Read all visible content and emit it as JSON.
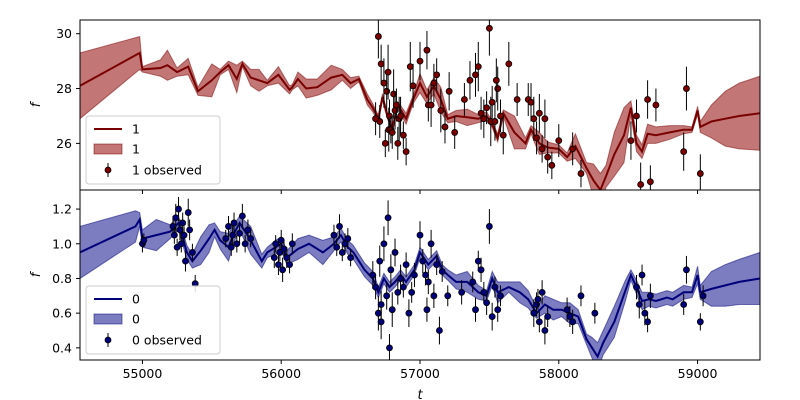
{
  "chart_data": [
    {
      "type": "line",
      "panel": "top",
      "xlabel": "",
      "ylabel": "f",
      "xlim": [
        54550,
        59450
      ],
      "ylim": [
        24.3,
        30.5
      ],
      "yticks": [
        26,
        28,
        30
      ],
      "color": "#7a0000",
      "band_color": "#b35454",
      "legend": {
        "line_label": "1",
        "band_label": "1",
        "points_label": "1 observed",
        "placement": "lower left"
      },
      "model": {
        "x": [
          54550,
          54980,
          55000,
          55130,
          55180,
          55250,
          55330,
          55400,
          55500,
          55560,
          55620,
          55680,
          55720,
          55780,
          55840,
          55900,
          55980,
          56060,
          56080,
          56120,
          56180,
          56260,
          56360,
          56440,
          56500,
          56560,
          56620,
          56660,
          56700,
          56730,
          56760,
          56800,
          56840,
          56900,
          56950,
          57000,
          57050,
          57100,
          57150,
          57200,
          57260,
          57340,
          57420,
          57480,
          57520,
          57560,
          57600,
          57680,
          57760,
          57800,
          57860,
          57920,
          58000,
          58060,
          58120,
          58200,
          58250,
          58300,
          58340,
          58400,
          58470,
          58520,
          58560,
          58600,
          58640,
          58700,
          58800,
          58900,
          58960,
          59000,
          59020,
          59100,
          59200,
          59300,
          59450
        ],
        "y": [
          28.1,
          29.3,
          28.7,
          28.75,
          28.85,
          28.6,
          28.8,
          27.9,
          28.3,
          28.6,
          28.85,
          28.35,
          28.9,
          28.4,
          28.3,
          28.2,
          28.5,
          27.95,
          28.05,
          28.35,
          28.0,
          28.05,
          28.4,
          28.5,
          28.2,
          28.35,
          27.6,
          27.3,
          26.9,
          27.7,
          27.1,
          26.5,
          27.4,
          26.9,
          27.6,
          28.2,
          27.7,
          28.1,
          27.6,
          26.9,
          27.0,
          26.95,
          26.9,
          27.0,
          26.7,
          26.2,
          27.1,
          26.4,
          26.0,
          26.5,
          26.0,
          25.85,
          25.8,
          25.5,
          25.9,
          25.1,
          24.65,
          24.3,
          24.8,
          25.6,
          26.3,
          27.3,
          26.0,
          25.7,
          26.35,
          26.3,
          26.4,
          26.5,
          26.5,
          27.2,
          26.6,
          26.8,
          26.9,
          27.0,
          27.1
        ],
        "band": [
          1.2,
          0.6,
          0.1,
          0.3,
          0.55,
          0.15,
          0.3,
          0.15,
          0.6,
          0.1,
          0.15,
          0.5,
          0.1,
          0.3,
          0.4,
          0.1,
          0.3,
          0.15,
          0.1,
          0.25,
          0.35,
          0.3,
          0.45,
          0.2,
          0.2,
          0.1,
          0.2,
          0.15,
          0.12,
          0.12,
          0.12,
          0.12,
          0.12,
          0.2,
          0.15,
          0.35,
          0.25,
          0.3,
          0.45,
          0.15,
          0.2,
          0.3,
          0.15,
          0.15,
          0.12,
          0.15,
          0.12,
          0.6,
          0.2,
          0.15,
          0.4,
          0.2,
          0.15,
          0.15,
          0.45,
          0.2,
          0.6,
          0.6,
          0.4,
          0.8,
          1.0,
          0.25,
          0.3,
          0.25,
          0.35,
          0.3,
          0.25,
          0.15,
          0.1,
          0.15,
          0.2,
          0.6,
          1.0,
          1.2,
          1.35
        ]
      },
      "observed": {
        "x": [
          56710,
          56700,
          56720,
          56740,
          56750,
          56760,
          56770,
          56775,
          56780,
          56790,
          56800,
          56810,
          56820,
          56830,
          56840,
          56850,
          56860,
          56880,
          56900,
          56930,
          57050,
          57060,
          57080,
          57100,
          57120,
          57150,
          57180,
          57210,
          57320,
          57360,
          57400,
          57420,
          57440,
          57460,
          57480,
          57500,
          57510,
          57520,
          57540,
          57560,
          57580,
          57600,
          57640,
          57780,
          57800,
          57820,
          57840,
          57860,
          57880,
          57920,
          57950,
          58100,
          58160,
          58520,
          58560,
          58590,
          58640,
          58660,
          58700,
          58900,
          58920,
          59020,
          58000,
          57900,
          57700,
          57550,
          57250,
          57000,
          56950,
          56680
        ],
        "y": [
          26.8,
          29.9,
          28.9,
          28.2,
          26.0,
          27.9,
          28.6,
          26.5,
          27.0,
          26.5,
          26.4,
          27.8,
          27.2,
          27.4,
          26.0,
          26.9,
          27.0,
          26.3,
          25.7,
          28.8,
          29.4,
          27.4,
          27.4,
          28.2,
          28.5,
          27.2,
          26.6,
          27.9,
          27.6,
          28.3,
          28.5,
          28.8,
          27.1,
          26.9,
          27.3,
          30.2,
          26.8,
          27.5,
          26.8,
          28.0,
          27.0,
          26.3,
          28.9,
          27.6,
          27.5,
          26.9,
          26.2,
          27.1,
          25.8,
          25.5,
          25.2,
          25.8,
          24.9,
          26.1,
          27.0,
          24.5,
          27.6,
          24.6,
          27.4,
          25.7,
          28.0,
          24.9,
          26.1,
          26.9,
          27.6,
          28.3,
          26.4,
          29.0,
          28.1,
          26.9
        ],
        "err": [
          0.6,
          0.8,
          0.7,
          0.9,
          0.5,
          0.7,
          1.0,
          0.8,
          0.6,
          0.5,
          0.6,
          0.9,
          0.7,
          0.6,
          0.6,
          0.8,
          0.7,
          0.5,
          0.5,
          0.9,
          0.7,
          0.6,
          0.8,
          0.7,
          0.6,
          0.8,
          0.6,
          0.7,
          0.6,
          0.7,
          0.8,
          0.9,
          0.6,
          0.7,
          0.6,
          1.0,
          0.9,
          0.6,
          0.7,
          0.8,
          0.6,
          0.7,
          0.8,
          0.6,
          0.7,
          0.8,
          0.6,
          0.7,
          0.5,
          0.6,
          0.5,
          0.6,
          0.5,
          0.7,
          0.6,
          0.8,
          0.7,
          0.6,
          0.6,
          0.7,
          0.8,
          0.7,
          0.6,
          0.7,
          0.6,
          0.8,
          0.6,
          0.7,
          0.8,
          0.6
        ]
      }
    },
    {
      "type": "line",
      "panel": "bottom",
      "xlabel": "t",
      "ylabel": "f",
      "xlim": [
        54550,
        59450
      ],
      "ylim": [
        0.33,
        1.31
      ],
      "yticks": [
        0.4,
        0.6,
        0.8,
        1.0,
        1.2
      ],
      "xticks": [
        55000,
        56000,
        57000,
        58000,
        59000
      ],
      "color": "#00007a",
      "band_color": "#5b5bb0",
      "legend": {
        "line_label": "0",
        "band_label": "0",
        "points_label": "0 observed",
        "placement": "lower left"
      },
      "model": {
        "x": [
          54550,
          54950,
          54980,
          55000,
          55100,
          55200,
          55260,
          55320,
          55360,
          55420,
          55480,
          55520,
          55560,
          55620,
          55660,
          55700,
          55780,
          55860,
          55900,
          55960,
          56000,
          56040,
          56120,
          56200,
          56300,
          56380,
          56430,
          56480,
          56520,
          56600,
          56660,
          56700,
          56740,
          56780,
          56820,
          56860,
          56900,
          56960,
          57000,
          57060,
          57120,
          57160,
          57200,
          57260,
          57340,
          57420,
          57480,
          57520,
          57560,
          57640,
          57720,
          57780,
          57840,
          57900,
          57960,
          58020,
          58080,
          58140,
          58200,
          58240,
          58280,
          58320,
          58400,
          58480,
          58520,
          58560,
          58600,
          58650,
          58700,
          58780,
          58820,
          58900,
          58960,
          59000,
          59020,
          59100,
          59200,
          59300,
          59450
        ],
        "y": [
          0.95,
          1.1,
          1.14,
          1.03,
          1.05,
          1.07,
          1.12,
          0.95,
          0.9,
          0.96,
          1.03,
          1.08,
          1.02,
          0.98,
          1.06,
          1.12,
          1.02,
          0.9,
          0.95,
          0.98,
          1.0,
          0.92,
          0.97,
          1.0,
          0.95,
          1.0,
          1.05,
          0.98,
          0.95,
          0.85,
          0.8,
          0.72,
          0.8,
          0.75,
          0.78,
          0.82,
          0.78,
          0.85,
          0.95,
          0.88,
          0.93,
          0.85,
          0.82,
          0.78,
          0.78,
          0.72,
          0.7,
          0.8,
          0.72,
          0.75,
          0.72,
          0.68,
          0.6,
          0.65,
          0.62,
          0.62,
          0.6,
          0.58,
          0.45,
          0.4,
          0.35,
          0.43,
          0.55,
          0.73,
          0.82,
          0.75,
          0.67,
          0.68,
          0.67,
          0.69,
          0.68,
          0.72,
          0.72,
          0.82,
          0.72,
          0.74,
          0.76,
          0.78,
          0.8
        ],
        "band": [
          0.15,
          0.09,
          0.04,
          0.05,
          0.09,
          0.04,
          0.04,
          0.04,
          0.04,
          0.08,
          0.08,
          0.04,
          0.05,
          0.08,
          0.05,
          0.04,
          0.08,
          0.04,
          0.03,
          0.04,
          0.04,
          0.04,
          0.06,
          0.05,
          0.07,
          0.04,
          0.04,
          0.04,
          0.04,
          0.04,
          0.04,
          0.03,
          0.03,
          0.03,
          0.03,
          0.03,
          0.03,
          0.03,
          0.03,
          0.03,
          0.03,
          0.03,
          0.03,
          0.04,
          0.06,
          0.04,
          0.03,
          0.04,
          0.06,
          0.03,
          0.06,
          0.05,
          0.03,
          0.05,
          0.06,
          0.04,
          0.06,
          0.04,
          0.03,
          0.06,
          0.08,
          0.07,
          0.09,
          0.06,
          0.03,
          0.04,
          0.05,
          0.04,
          0.04,
          0.04,
          0.04,
          0.04,
          0.03,
          0.05,
          0.04,
          0.1,
          0.12,
          0.13,
          0.15
        ]
      },
      "observed": {
        "x": [
          55000,
          55010,
          55220,
          55230,
          55240,
          55250,
          55260,
          55270,
          55280,
          55290,
          55300,
          55310,
          55330,
          55340,
          55360,
          55380,
          55600,
          55620,
          55640,
          55650,
          55660,
          55680,
          55700,
          55720,
          55740,
          55760,
          55780,
          55950,
          55960,
          55980,
          55990,
          56000,
          56010,
          56020,
          56040,
          56060,
          56080,
          56380,
          56400,
          56420,
          56440,
          56460,
          56480,
          56500,
          56660,
          56680,
          56700,
          56710,
          56720,
          56740,
          56760,
          56770,
          56780,
          56790,
          56800,
          56820,
          56840,
          56860,
          56880,
          56900,
          56920,
          56940,
          56960,
          57000,
          57020,
          57040,
          57060,
          57080,
          57100,
          57120,
          57140,
          57160,
          57200,
          57380,
          57400,
          57420,
          57440,
          57460,
          57480,
          57500,
          57520,
          57540,
          57560,
          57580,
          57820,
          57840,
          57860,
          57880,
          57900,
          57920,
          58060,
          58080,
          58100,
          58160,
          58260,
          58560,
          58580,
          58600,
          58620,
          58640,
          58660,
          58900,
          58920,
          59020,
          59040,
          57850,
          57300,
          56720,
          57050
        ],
        "y": [
          1.0,
          1.02,
          1.1,
          1.05,
          1.15,
          0.98,
          1.2,
          1.08,
          1.0,
          1.12,
          1.05,
          0.9,
          1.18,
          1.08,
          0.95,
          0.77,
          1.03,
          1.1,
          0.98,
          1.05,
          1.12,
          1.0,
          1.06,
          1.16,
          1.0,
          1.08,
          1.03,
          0.92,
          1.0,
          0.88,
          0.95,
          1.02,
          0.85,
          0.97,
          0.92,
          0.88,
          1.0,
          1.05,
          0.98,
          1.1,
          0.95,
          1.0,
          1.03,
          0.92,
          0.82,
          0.75,
          0.6,
          0.9,
          0.55,
          1.0,
          0.7,
          1.15,
          0.4,
          0.85,
          0.62,
          0.95,
          0.72,
          0.8,
          0.75,
          0.88,
          0.6,
          0.72,
          0.82,
          1.05,
          0.9,
          0.82,
          0.78,
          1.0,
          0.7,
          0.88,
          0.5,
          0.84,
          0.7,
          0.78,
          0.62,
          0.9,
          0.85,
          0.72,
          0.66,
          1.1,
          0.58,
          0.75,
          0.62,
          0.7,
          0.6,
          0.65,
          0.55,
          0.72,
          0.5,
          0.58,
          0.62,
          0.58,
          0.55,
          0.7,
          0.6,
          0.75,
          0.65,
          0.82,
          0.6,
          0.55,
          0.7,
          0.65,
          0.85,
          0.55,
          0.7,
          0.68,
          0.72,
          0.65,
          0.62
        ],
        "err": [
          0.05,
          0.04,
          0.06,
          0.05,
          0.08,
          0.05,
          0.07,
          0.06,
          0.05,
          0.06,
          0.05,
          0.06,
          0.08,
          0.06,
          0.05,
          0.05,
          0.05,
          0.06,
          0.05,
          0.06,
          0.06,
          0.05,
          0.06,
          0.07,
          0.05,
          0.06,
          0.05,
          0.06,
          0.05,
          0.06,
          0.05,
          0.06,
          0.07,
          0.05,
          0.06,
          0.05,
          0.06,
          0.06,
          0.05,
          0.07,
          0.05,
          0.06,
          0.06,
          0.05,
          0.08,
          0.07,
          0.1,
          0.09,
          0.1,
          0.1,
          0.08,
          0.1,
          0.08,
          0.09,
          0.1,
          0.08,
          0.07,
          0.08,
          0.06,
          0.07,
          0.08,
          0.06,
          0.07,
          0.08,
          0.07,
          0.06,
          0.07,
          0.08,
          0.07,
          0.06,
          0.08,
          0.06,
          0.06,
          0.06,
          0.07,
          0.06,
          0.07,
          0.06,
          0.07,
          0.1,
          0.08,
          0.06,
          0.07,
          0.06,
          0.08,
          0.07,
          0.06,
          0.07,
          0.08,
          0.06,
          0.07,
          0.06,
          0.07,
          0.06,
          0.06,
          0.07,
          0.08,
          0.06,
          0.07,
          0.06,
          0.07,
          0.06,
          0.08,
          0.05,
          0.06,
          0.06,
          0.07,
          0.08,
          0.07
        ]
      }
    }
  ]
}
